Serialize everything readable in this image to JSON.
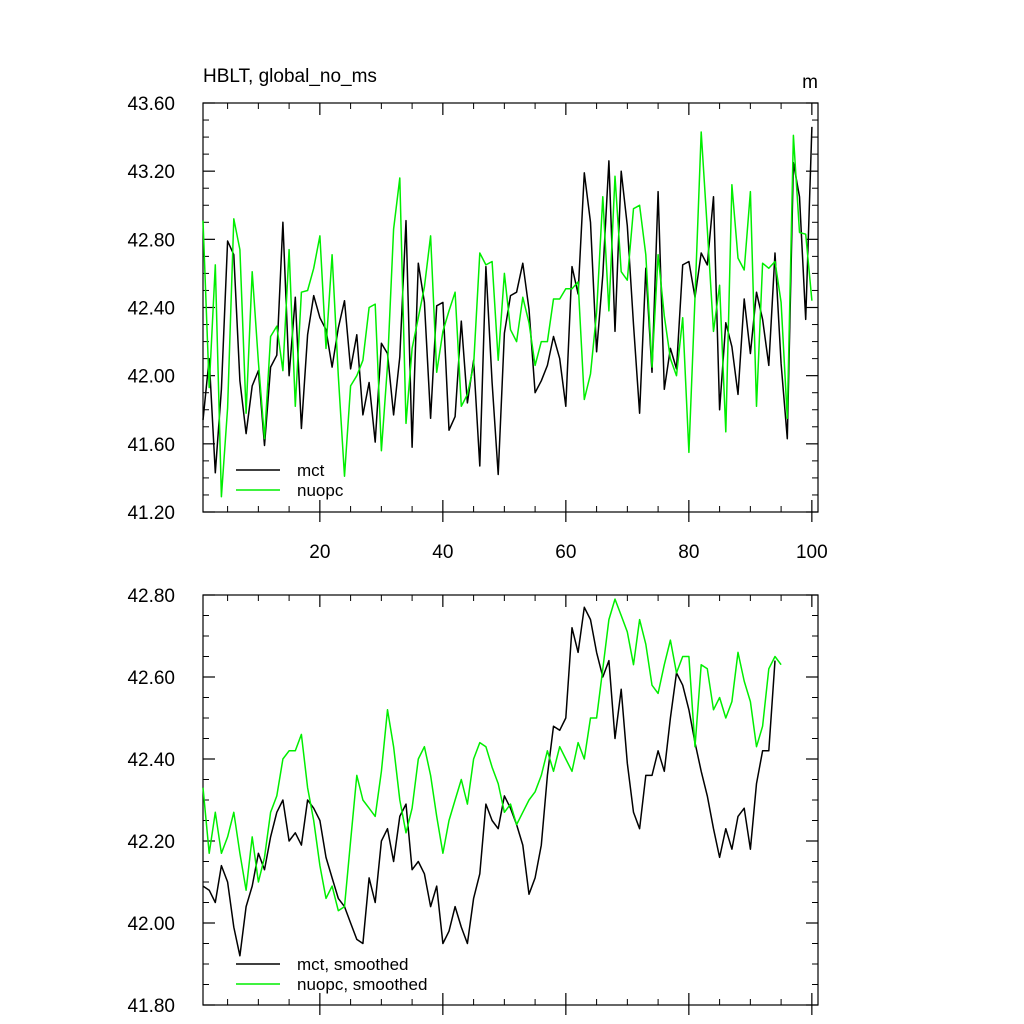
{
  "chart_data": [
    {
      "type": "line",
      "title": "HBLT, global_no_ms",
      "units": "m",
      "xlim": [
        1,
        101
      ],
      "ylim": [
        41.2,
        43.6
      ],
      "yticks": [
        "41.20",
        "41.60",
        "42.00",
        "42.40",
        "42.80",
        "43.20",
        "43.60"
      ],
      "xticks": [
        "20",
        "40",
        "60",
        "80",
        "100"
      ],
      "legend_position": "bottom-left",
      "series": [
        {
          "name": "mct",
          "color": "#000000",
          "values": [
            41.74,
            42.1,
            41.43,
            41.92,
            42.79,
            42.71,
            41.97,
            41.66,
            41.94,
            42.03,
            41.59,
            42.05,
            42.12,
            42.9,
            42.0,
            42.46,
            41.69,
            42.24,
            42.47,
            42.34,
            42.27,
            42.05,
            42.28,
            42.44,
            42.04,
            42.24,
            41.77,
            41.96,
            41.61,
            42.19,
            42.13,
            41.77,
            42.11,
            42.91,
            41.58,
            42.66,
            42.43,
            41.75,
            42.41,
            42.43,
            41.68,
            41.76,
            42.32,
            41.84,
            42.09,
            41.47,
            42.64,
            41.96,
            41.42,
            42.25,
            42.47,
            42.49,
            42.66,
            42.39,
            41.9,
            41.97,
            42.06,
            42.23,
            42.1,
            41.82,
            42.64,
            42.48,
            43.19,
            42.9,
            42.14,
            42.59,
            43.26,
            42.26,
            43.2,
            42.88,
            42.3,
            41.78,
            42.63,
            42.02,
            43.08,
            41.92,
            42.16,
            42.04,
            42.65,
            42.67,
            42.46,
            42.72,
            42.65,
            43.05,
            41.8,
            42.31,
            42.17,
            41.89,
            42.45,
            42.13,
            42.49,
            42.33,
            42.06,
            42.72,
            42.07,
            41.63,
            43.25,
            43.05,
            42.33,
            43.46
          ]
        },
        {
          "name": "nuopc",
          "color": "#00ee00",
          "values": [
            42.91,
            41.93,
            42.65,
            41.29,
            41.81,
            42.92,
            42.74,
            41.78,
            42.61,
            42.08,
            41.63,
            42.23,
            42.29,
            42.03,
            42.74,
            41.82,
            42.49,
            42.5,
            42.63,
            42.82,
            42.16,
            42.71,
            42.0,
            41.41,
            41.94,
            42.0,
            42.09,
            42.4,
            42.42,
            41.56,
            42.06,
            42.86,
            43.16,
            41.72,
            42.16,
            42.34,
            42.52,
            42.82,
            42.02,
            42.26,
            42.38,
            42.49,
            41.82,
            41.89,
            42.06,
            42.72,
            42.65,
            42.67,
            42.09,
            42.6,
            42.27,
            42.2,
            42.46,
            42.31,
            42.06,
            42.2,
            42.2,
            42.45,
            42.45,
            42.51,
            42.51,
            42.55,
            41.86,
            42.01,
            42.37,
            43.05,
            42.38,
            43.17,
            42.61,
            42.56,
            42.98,
            43.0,
            42.71,
            42.05,
            42.71,
            42.35,
            42.1,
            42.0,
            42.34,
            41.55,
            42.46,
            43.43,
            42.86,
            42.26,
            42.53,
            41.67,
            43.12,
            42.69,
            42.62,
            43.08,
            41.82,
            42.66,
            42.63,
            42.67,
            42.43,
            41.75,
            43.41,
            42.84,
            42.83,
            42.44
          ]
        }
      ]
    },
    {
      "type": "line",
      "xlim": [
        1,
        101
      ],
      "ylim": [
        41.8,
        42.8
      ],
      "yticks": [
        "41.80",
        "42.00",
        "42.20",
        "42.40",
        "42.60",
        "42.80"
      ],
      "xticks": [],
      "legend_position": "bottom-left",
      "series": [
        {
          "name": "mct, smoothed",
          "color": "#000000",
          "values": [
            42.09,
            42.08,
            42.05,
            42.14,
            42.1,
            41.99,
            41.92,
            42.04,
            42.09,
            42.17,
            42.13,
            42.21,
            42.27,
            42.3,
            42.2,
            42.22,
            42.19,
            42.3,
            42.28,
            42.25,
            42.16,
            42.11,
            42.06,
            42.04,
            42.0,
            41.96,
            41.95,
            42.11,
            42.05,
            42.2,
            42.23,
            42.15,
            42.26,
            42.29,
            42.13,
            42.15,
            42.12,
            42.04,
            42.09,
            41.95,
            41.98,
            42.04,
            41.99,
            41.95,
            42.06,
            42.12,
            42.29,
            42.25,
            42.23,
            42.31,
            42.28,
            42.24,
            42.19,
            42.07,
            42.11,
            42.19,
            42.36,
            42.48,
            42.47,
            42.5,
            42.72,
            42.66,
            42.77,
            42.74,
            42.66,
            42.6,
            42.64,
            42.45,
            42.57,
            42.39,
            42.27,
            42.23,
            42.36,
            42.36,
            42.42,
            42.37,
            42.5,
            42.61,
            42.58,
            42.52,
            42.44,
            42.37,
            42.31,
            42.23,
            42.16,
            42.23,
            42.18,
            42.26,
            42.28,
            42.18,
            42.34,
            42.42,
            42.42,
            42.64
          ]
        },
        {
          "name": "nuopc, smoothed",
          "color": "#00ee00",
          "values": [
            42.33,
            42.17,
            42.27,
            42.17,
            42.21,
            42.27,
            42.17,
            42.08,
            42.21,
            42.1,
            42.16,
            42.27,
            42.31,
            42.4,
            42.42,
            42.42,
            42.46,
            42.33,
            42.25,
            42.14,
            42.06,
            42.09,
            42.03,
            42.04,
            42.2,
            42.36,
            42.3,
            42.28,
            42.26,
            42.37,
            42.52,
            42.43,
            42.3,
            42.22,
            42.28,
            42.4,
            42.43,
            42.36,
            42.26,
            42.17,
            42.25,
            42.3,
            42.35,
            42.29,
            42.4,
            42.44,
            42.43,
            42.38,
            42.34,
            42.27,
            42.29,
            42.24,
            42.27,
            42.3,
            42.32,
            42.36,
            42.42,
            42.37,
            42.43,
            42.4,
            42.37,
            42.44,
            42.4,
            42.5,
            42.5,
            42.62,
            42.74,
            42.79,
            42.75,
            42.71,
            42.63,
            42.74,
            42.68,
            42.58,
            42.56,
            42.63,
            42.69,
            42.61,
            42.65,
            42.65,
            42.43,
            42.63,
            42.62,
            42.52,
            42.55,
            42.5,
            42.54,
            42.66,
            42.59,
            42.54,
            42.43,
            42.48,
            42.62,
            42.65,
            42.63
          ]
        }
      ]
    }
  ]
}
